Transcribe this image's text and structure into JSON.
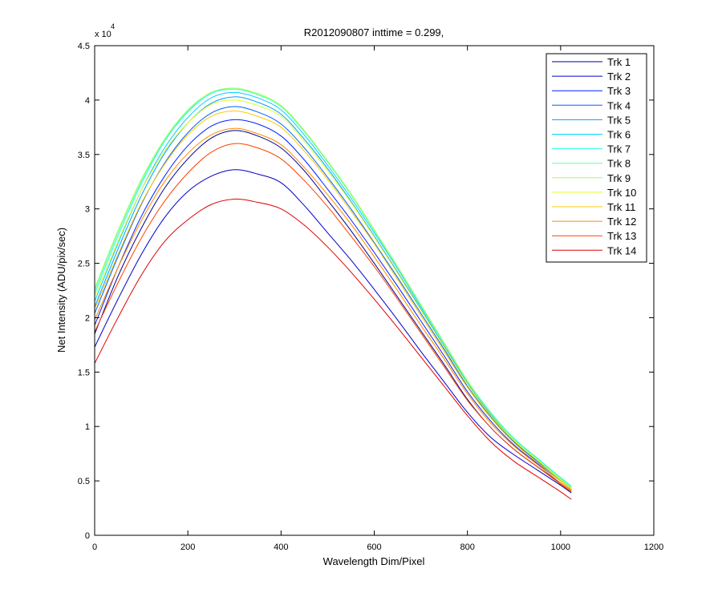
{
  "chart_data": {
    "type": "line",
    "title": "R2012090807 inttime = 0.299,",
    "xlabel": "Wavelength Dim/Pixel",
    "ylabel": "Net Intensity (ADU/pix/sec)",
    "xlim": [
      0,
      1200
    ],
    "ylim": [
      0,
      45000
    ],
    "y_exponent_label": {
      "base": "x 10",
      "exponent": "4"
    },
    "x_ticks": [
      0,
      200,
      400,
      600,
      800,
      1000,
      1200
    ],
    "x_tick_labels": [
      "0",
      "200",
      "400",
      "600",
      "800",
      "1000",
      "1200"
    ],
    "y_ticks": [
      0,
      5000,
      10000,
      15000,
      20000,
      25000,
      30000,
      35000,
      40000,
      45000
    ],
    "y_tick_labels": [
      "0",
      "0.5",
      "1",
      "1.5",
      "2",
      "2.5",
      "3",
      "3.5",
      "4",
      "4.5"
    ],
    "grid": false,
    "legend_position": "top-right",
    "x": [
      0,
      50,
      100,
      150,
      200,
      250,
      300,
      350,
      400,
      450,
      500,
      550,
      600,
      650,
      700,
      750,
      800,
      850,
      900,
      950,
      1000,
      1023
    ],
    "series": [
      {
        "name": "Trk 1",
        "color": "#00008f",
        "values": [
          18500,
          23800,
          28200,
          31900,
          34600,
          36500,
          37200,
          36700,
          35600,
          33500,
          30800,
          28000,
          25000,
          21900,
          18800,
          15700,
          12500,
          9900,
          7900,
          6300,
          4800,
          4100
        ]
      },
      {
        "name": "Trk 2",
        "color": "#0000c8",
        "values": [
          17300,
          21700,
          25800,
          29200,
          31600,
          33000,
          33600,
          33200,
          32400,
          30300,
          27800,
          25300,
          22600,
          19800,
          16900,
          14100,
          11300,
          9000,
          7400,
          6000,
          4600,
          3900
        ]
      },
      {
        "name": "Trk 3",
        "color": "#0020ff",
        "values": [
          19300,
          24600,
          29300,
          33000,
          35800,
          37600,
          38200,
          37800,
          36700,
          34500,
          31800,
          29000,
          26000,
          22900,
          19700,
          16500,
          13200,
          10500,
          8300,
          6600,
          5000,
          4200
        ]
      },
      {
        "name": "Trk 4",
        "color": "#0060ff",
        "values": [
          20400,
          25600,
          30400,
          34200,
          37000,
          38800,
          39400,
          38900,
          37800,
          35600,
          32900,
          30000,
          26900,
          23700,
          20400,
          17100,
          13700,
          10900,
          8600,
          6800,
          5100,
          4300
        ]
      },
      {
        "name": "Trk 5",
        "color": "#00a0ff",
        "values": [
          21000,
          26300,
          31200,
          35100,
          37900,
          39700,
          40300,
          39800,
          38700,
          36400,
          33700,
          30700,
          27500,
          24200,
          20800,
          17400,
          14000,
          11100,
          8800,
          7000,
          5200,
          4400
        ]
      },
      {
        "name": "Trk 6",
        "color": "#00d0ff",
        "values": [
          21500,
          26800,
          31700,
          35600,
          38400,
          40200,
          40700,
          40200,
          39100,
          36800,
          34000,
          31000,
          27800,
          24500,
          21000,
          17600,
          14100,
          11200,
          8900,
          7000,
          5300,
          4500
        ]
      },
      {
        "name": "Trk 7",
        "color": "#20ffe0",
        "values": [
          22200,
          27500,
          32300,
          36200,
          38900,
          40600,
          41000,
          40500,
          39400,
          37100,
          34300,
          31300,
          28000,
          24700,
          21200,
          17700,
          14200,
          11300,
          8900,
          7100,
          5300,
          4500
        ]
      },
      {
        "name": "Trk 8",
        "color": "#60ff9f",
        "values": [
          22500,
          27800,
          32500,
          36300,
          39000,
          40700,
          41000,
          40500,
          39400,
          37100,
          34300,
          31300,
          28000,
          24600,
          21100,
          17600,
          14100,
          11200,
          8800,
          7000,
          5200,
          4400
        ]
      },
      {
        "name": "Trk 9",
        "color": "#a0ff60",
        "values": [
          22700,
          28000,
          32700,
          36400,
          39100,
          40700,
          41100,
          40600,
          39500,
          37200,
          34400,
          31400,
          28100,
          24700,
          21200,
          17700,
          14200,
          11200,
          8800,
          7000,
          5200,
          4400
        ]
      },
      {
        "name": "Trk 10",
        "color": "#e0ff20",
        "values": [
          21900,
          27000,
          31700,
          35300,
          37900,
          39600,
          40000,
          39500,
          38500,
          36200,
          33500,
          30600,
          27400,
          24100,
          20700,
          17300,
          13900,
          11000,
          8700,
          6900,
          5100,
          4300
        ]
      },
      {
        "name": "Trk 11",
        "color": "#ffc800",
        "values": [
          20800,
          25800,
          30500,
          34100,
          36800,
          38500,
          39000,
          38500,
          37500,
          35300,
          32700,
          29800,
          26800,
          23500,
          20200,
          16900,
          13600,
          10800,
          8500,
          6700,
          5000,
          4200
        ]
      },
      {
        "name": "Trk 12",
        "color": "#ff8a00",
        "values": [
          19800,
          24600,
          28900,
          32500,
          35100,
          36800,
          37400,
          36900,
          35900,
          33800,
          31300,
          28600,
          25600,
          22500,
          19300,
          16200,
          13000,
          10300,
          8200,
          6500,
          4800,
          4100
        ]
      },
      {
        "name": "Trk 13",
        "color": "#ff4000",
        "values": [
          18700,
          23200,
          27300,
          30700,
          33300,
          35200,
          36000,
          35600,
          34600,
          32600,
          30200,
          27500,
          24700,
          21700,
          18600,
          15500,
          12400,
          9900,
          7900,
          6300,
          4700,
          4000
        ]
      },
      {
        "name": "Trk 14",
        "color": "#e00000",
        "values": [
          15800,
          20000,
          23900,
          27000,
          29000,
          30400,
          30900,
          30600,
          30000,
          28500,
          26500,
          24200,
          21700,
          19100,
          16400,
          13700,
          11000,
          8600,
          6800,
          5400,
          4000,
          3300
        ]
      }
    ]
  }
}
